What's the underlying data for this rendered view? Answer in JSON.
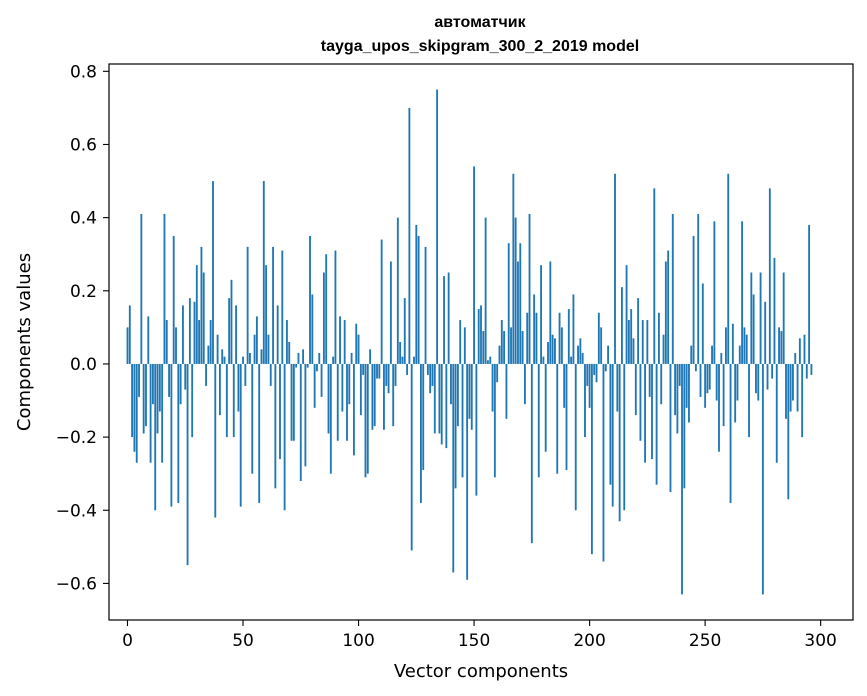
{
  "chart_data": {
    "type": "bar",
    "title": "автоматчик",
    "subtitle": "tayga_upos_skipgram_300_2_2019 model",
    "xlabel": "Vector components",
    "ylabel": "Components values",
    "xlim": [
      -8,
      314
    ],
    "ylim": [
      -0.7,
      0.82
    ],
    "xticks": [
      0,
      50,
      100,
      150,
      200,
      250,
      300
    ],
    "xtick_labels": [
      "0",
      "50",
      "100",
      "150",
      "200",
      "250",
      "300"
    ],
    "yticks": [
      -0.6,
      -0.4,
      -0.2,
      0.0,
      0.2,
      0.4,
      0.6,
      0.8
    ],
    "ytick_labels": [
      "−0.6",
      "−0.4",
      "−0.2",
      "0.0",
      "0.2",
      "0.4",
      "0.6",
      "0.8"
    ],
    "bar_color": "#1f77b4",
    "series": [
      {
        "name": "автоматчик",
        "values": [
          0.1,
          0.16,
          -0.2,
          -0.24,
          -0.27,
          -0.09,
          0.41,
          -0.19,
          -0.17,
          0.13,
          -0.27,
          -0.11,
          -0.4,
          -0.19,
          -0.13,
          -0.27,
          0.41,
          0.12,
          -0.09,
          -0.39,
          0.35,
          0.1,
          -0.38,
          -0.11,
          0.16,
          -0.07,
          -0.55,
          0.18,
          -0.2,
          0.17,
          0.27,
          0.12,
          0.32,
          0.25,
          -0.06,
          0.05,
          0.12,
          0.5,
          -0.42,
          0.08,
          -0.14,
          0.04,
          0.02,
          -0.2,
          0.18,
          0.23,
          -0.2,
          0.16,
          -0.13,
          -0.39,
          0.02,
          -0.06,
          0.32,
          0.03,
          -0.3,
          0.08,
          0.13,
          -0.38,
          0.04,
          0.5,
          0.27,
          0.08,
          -0.06,
          0.32,
          -0.34,
          0.16,
          -0.26,
          0.31,
          -0.4,
          0.12,
          0.06,
          -0.21,
          -0.21,
          -0.01,
          0.03,
          -0.32,
          0.04,
          -0.28,
          -0.01,
          0.35,
          0.19,
          -0.12,
          -0.02,
          0.03,
          -0.09,
          0.25,
          0.3,
          -0.19,
          -0.3,
          0.02,
          0.31,
          -0.21,
          0.13,
          -0.13,
          0.12,
          -0.21,
          -0.11,
          0.03,
          -0.25,
          0.11,
          0.08,
          -0.14,
          -0.03,
          -0.31,
          -0.3,
          0.04,
          -0.18,
          -0.17,
          -0.04,
          -0.04,
          0.34,
          -0.18,
          -0.06,
          -0.08,
          0.28,
          -0.17,
          -0.06,
          0.4,
          0.06,
          0.02,
          0.18,
          -0.03,
          0.7,
          -0.51,
          0.02,
          0.38,
          0.35,
          -0.38,
          -0.29,
          0.32,
          -0.03,
          -0.08,
          -0.06,
          -0.19,
          0.75,
          -0.19,
          -0.22,
          0.24,
          -0.23,
          0.25,
          -0.11,
          -0.57,
          -0.34,
          -0.17,
          0.12,
          -0.31,
          0.1,
          -0.59,
          -0.15,
          -0.18,
          0.54,
          -0.36,
          0.15,
          0.16,
          0.09,
          0.4,
          0.01,
          0.02,
          -0.13,
          -0.31,
          -0.05,
          0.05,
          0.12,
          0.09,
          -0.15,
          0.33,
          0.1,
          0.52,
          0.4,
          0.28,
          0.33,
          0.09,
          -0.11,
          0.14,
          0.41,
          -0.49,
          0.19,
          0.14,
          -0.31,
          0.27,
          0.02,
          -0.24,
          0.06,
          0.28,
          0.08,
          0.07,
          -0.3,
          0.14,
          0.1,
          -0.12,
          -0.29,
          0.15,
          0.02,
          0.19,
          -0.4,
          0.05,
          0.07,
          0.03,
          -0.2,
          -0.06,
          -0.12,
          -0.52,
          -0.03,
          -0.05,
          0.14,
          0.1,
          -0.54,
          -0.02,
          0.05,
          -0.33,
          -0.39,
          0.52,
          -0.13,
          -0.43,
          0.21,
          -0.4,
          0.27,
          0.12,
          0.15,
          0.07,
          -0.14,
          0.18,
          -0.21,
          0.12,
          -0.27,
          0.12,
          -0.09,
          -0.26,
          0.48,
          -0.33,
          0.14,
          -0.11,
          0.08,
          0.28,
          0.31,
          -0.35,
          0.41,
          -0.14,
          -0.19,
          -0.06,
          -0.63,
          -0.34,
          -0.12,
          -0.16,
          0.05,
          0.35,
          -0.02,
          0.41,
          -0.09,
          0.22,
          -0.12,
          -0.08,
          -0.07,
          0.05,
          0.39,
          -0.1,
          -0.24,
          0.03,
          -0.17,
          0.1,
          0.52,
          -0.38,
          0.11,
          -0.16,
          -0.1,
          0.05,
          0.39,
          0.1,
          0.08,
          -0.2,
          0.25,
          0.19,
          -0.08,
          -0.1,
          0.25,
          -0.63,
          0.17,
          -0.07,
          0.48,
          -0.04,
          0.29,
          -0.27,
          0.1,
          0.09,
          0.25,
          -0.15,
          -0.37,
          -0.13,
          -0.1,
          0.03,
          -0.13,
          0.07,
          -0.2,
          0.08,
          -0.04,
          0.38,
          -0.03
        ]
      }
    ]
  }
}
